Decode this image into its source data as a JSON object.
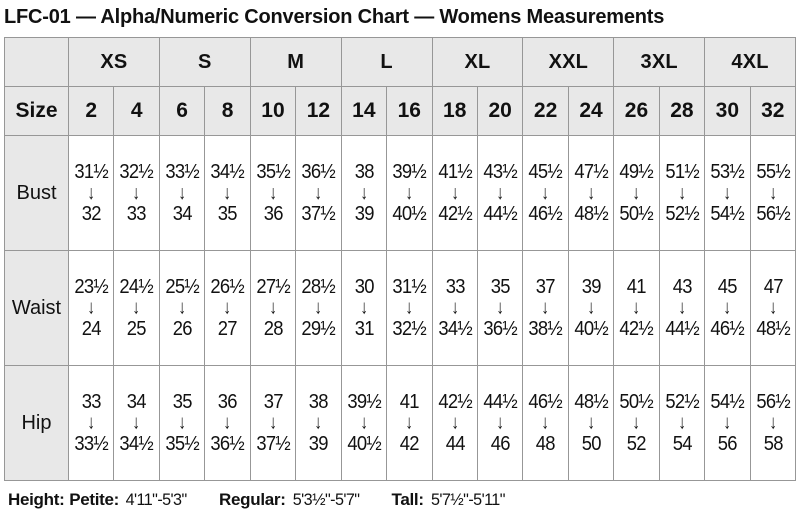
{
  "title": "LFC-01 — Alpha/Numeric Conversion Chart — Womens Measurements",
  "icons": {
    "arrow_down": "↓"
  },
  "colors": {
    "header_bg": "#e8e8e8",
    "border": "#979797",
    "text": "#111111",
    "background": "#ffffff"
  },
  "chart_data": {
    "type": "table",
    "title": "LFC-01 — Alpha/Numeric Conversion Chart — Womens Measurements",
    "column_groups": [
      "XS",
      "S",
      "M",
      "L",
      "XL",
      "XXL",
      "3XL",
      "4XL"
    ],
    "header_row_label": "Size",
    "sizes": [
      "2",
      "4",
      "6",
      "8",
      "10",
      "12",
      "14",
      "16",
      "18",
      "20",
      "22",
      "24",
      "26",
      "28",
      "30",
      "32"
    ],
    "rows": [
      {
        "label": "Bust",
        "ranges": [
          {
            "from": "31½",
            "to": "32"
          },
          {
            "from": "32½",
            "to": "33"
          },
          {
            "from": "33½",
            "to": "34"
          },
          {
            "from": "34½",
            "to": "35"
          },
          {
            "from": "35½",
            "to": "36"
          },
          {
            "from": "36½",
            "to": "37½"
          },
          {
            "from": "38",
            "to": "39"
          },
          {
            "from": "39½",
            "to": "40½"
          },
          {
            "from": "41½",
            "to": "42½"
          },
          {
            "from": "43½",
            "to": "44½"
          },
          {
            "from": "45½",
            "to": "46½"
          },
          {
            "from": "47½",
            "to": "48½"
          },
          {
            "from": "49½",
            "to": "50½"
          },
          {
            "from": "51½",
            "to": "52½"
          },
          {
            "from": "53½",
            "to": "54½"
          },
          {
            "from": "55½",
            "to": "56½"
          }
        ]
      },
      {
        "label": "Waist",
        "ranges": [
          {
            "from": "23½",
            "to": "24"
          },
          {
            "from": "24½",
            "to": "25"
          },
          {
            "from": "25½",
            "to": "26"
          },
          {
            "from": "26½",
            "to": "27"
          },
          {
            "from": "27½",
            "to": "28"
          },
          {
            "from": "28½",
            "to": "29½"
          },
          {
            "from": "30",
            "to": "31"
          },
          {
            "from": "31½",
            "to": "32½"
          },
          {
            "from": "33",
            "to": "34½"
          },
          {
            "from": "35",
            "to": "36½"
          },
          {
            "from": "37",
            "to": "38½"
          },
          {
            "from": "39",
            "to": "40½"
          },
          {
            "from": "41",
            "to": "42½"
          },
          {
            "from": "43",
            "to": "44½"
          },
          {
            "from": "45",
            "to": "46½"
          },
          {
            "from": "47",
            "to": "48½"
          }
        ]
      },
      {
        "label": "Hip",
        "ranges": [
          {
            "from": "33",
            "to": "33½"
          },
          {
            "from": "34",
            "to": "34½"
          },
          {
            "from": "35",
            "to": "35½"
          },
          {
            "from": "36",
            "to": "36½"
          },
          {
            "from": "37",
            "to": "37½"
          },
          {
            "from": "38",
            "to": "39"
          },
          {
            "from": "39½",
            "to": "40½"
          },
          {
            "from": "41",
            "to": "42"
          },
          {
            "from": "42½",
            "to": "44"
          },
          {
            "from": "44½",
            "to": "46"
          },
          {
            "from": "46½",
            "to": "48"
          },
          {
            "from": "48½",
            "to": "50"
          },
          {
            "from": "50½",
            "to": "52"
          },
          {
            "from": "52½",
            "to": "54"
          },
          {
            "from": "54½",
            "to": "56"
          },
          {
            "from": "56½",
            "to": "58"
          }
        ]
      }
    ]
  },
  "footer": {
    "height_label": "Height:",
    "entries": [
      {
        "label": "Petite:",
        "value": "4'11\"-5'3\""
      },
      {
        "label": "Regular:",
        "value": "5'3½\"-5'7\""
      },
      {
        "label": "Tall:",
        "value": "5'7½\"-5'11\""
      }
    ]
  }
}
